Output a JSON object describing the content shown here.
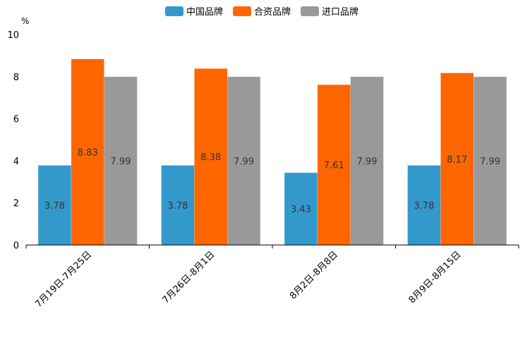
{
  "chart_data": {
    "type": "bar",
    "title": "",
    "xlabel": "",
    "ylabel": "%",
    "ylim": [
      0,
      10
    ],
    "yticks": [
      0,
      2,
      4,
      6,
      8,
      10
    ],
    "categories": [
      "7月19日-7月25日",
      "7月26日-8月1日",
      "8月2日-8月8日",
      "8月9日-8月15日"
    ],
    "series": [
      {
        "name": "中国品牌",
        "color": "#3399cc",
        "values": [
          3.78,
          3.78,
          3.43,
          3.78
        ]
      },
      {
        "name": "合资品牌",
        "color": "#ff6600",
        "values": [
          8.83,
          8.38,
          7.61,
          8.17
        ]
      },
      {
        "name": "进口品牌",
        "color": "#999999",
        "values": [
          7.99,
          7.99,
          7.99,
          7.99
        ]
      }
    ],
    "legend_position": "top-center",
    "data_label_color": "#333333",
    "axis_color": "#000000"
  }
}
